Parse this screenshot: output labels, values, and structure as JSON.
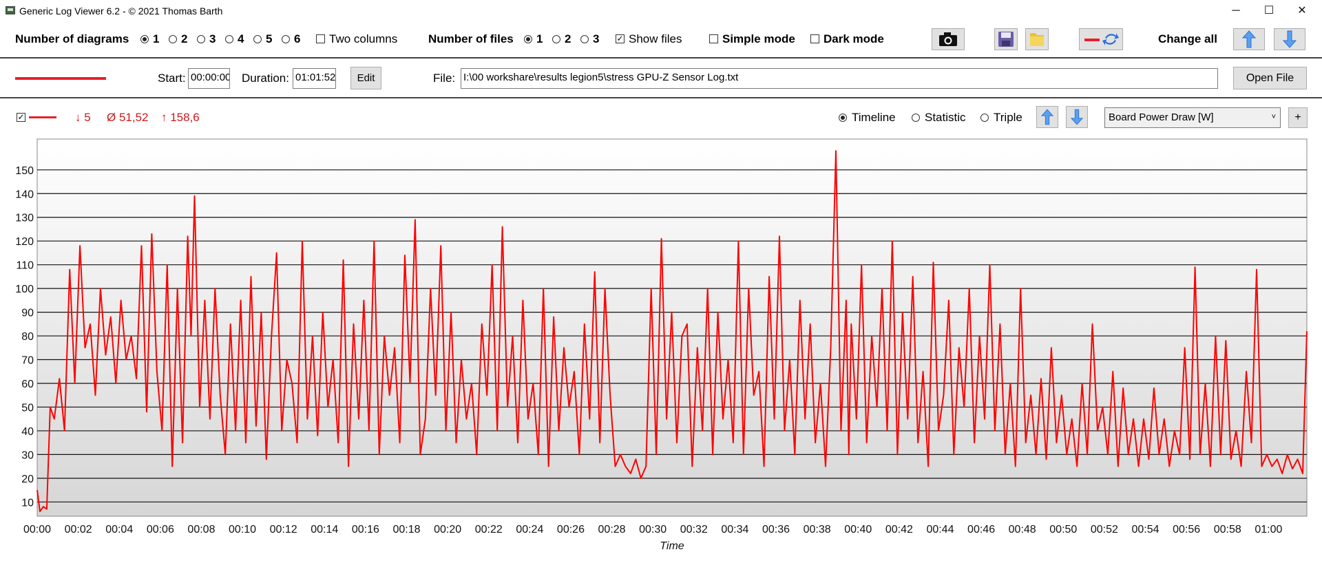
{
  "window": {
    "title": "Generic Log Viewer 6.2 - © 2021 Thomas Barth",
    "minimize": "─",
    "maximize": "☐",
    "close": "✕"
  },
  "toolbar": {
    "diagrams_label": "Number of diagrams",
    "diagram_options": [
      "1",
      "2",
      "3",
      "4",
      "5",
      "6"
    ],
    "diagrams_selected": "1",
    "two_columns_label": "Two columns",
    "files_label": "Number of files",
    "file_options": [
      "1",
      "2",
      "3"
    ],
    "files_selected": "1",
    "show_files_label": "Show files",
    "show_files_checked": true,
    "simple_mode_label": "Simple mode",
    "dark_mode_label": "Dark mode",
    "change_all_label": "Change all"
  },
  "file_row": {
    "start_label": "Start:",
    "start_value": "00:00:00",
    "duration_label": "Duration:",
    "duration_value": "01:01:52",
    "edit_label": "Edit",
    "file_label": "File:",
    "file_path": "I:\\00 workshare\\results legion5\\stress GPU-Z Sensor Log.txt",
    "open_file_label": "Open File",
    "line_color": "#e8202a"
  },
  "diagram": {
    "min_value": "↓ 5",
    "avg_value": "Ø 51,52",
    "max_value": "↑ 158,6",
    "view_options": [
      "Timeline",
      "Statistic",
      "Triple"
    ],
    "view_selected": "Timeline",
    "sensor": "Board Power Draw [W]",
    "add_label": "+"
  },
  "chart_data": {
    "type": "line",
    "xlabel": "Time",
    "ylabel": "",
    "ylim": [
      4,
      163
    ],
    "yticks": [
      10,
      20,
      30,
      40,
      50,
      60,
      70,
      80,
      90,
      100,
      110,
      120,
      130,
      140,
      150
    ],
    "x_range_seconds": [
      0,
      3712
    ],
    "xtick_labels": [
      "00:00",
      "00:02",
      "00:04",
      "00:06",
      "00:08",
      "00:10",
      "00:12",
      "00:14",
      "00:16",
      "00:18",
      "00:20",
      "00:22",
      "00:24",
      "00:26",
      "00:28",
      "00:30",
      "00:32",
      "00:34",
      "00:36",
      "00:38",
      "00:40",
      "00:42",
      "00:44",
      "00:46",
      "00:48",
      "00:50",
      "00:52",
      "00:54",
      "00:56",
      "00:58",
      "01:00"
    ],
    "grid": true,
    "series": [
      {
        "color": "#ff0000",
        "x": [
          "00:00:00",
          "00:00:08",
          "00:00:18",
          "00:00:28",
          "00:00:38",
          "00:00:50",
          "00:01:05",
          "00:01:20",
          "00:01:35",
          "00:01:50",
          "00:02:05",
          "00:02:20",
          "00:02:35",
          "00:02:50",
          "00:03:05",
          "00:03:20",
          "00:03:35",
          "00:03:50",
          "00:04:05",
          "00:04:20",
          "00:04:35",
          "00:04:50",
          "00:05:05",
          "00:05:20",
          "00:05:35",
          "00:05:50",
          "00:06:05",
          "00:06:20",
          "00:06:35",
          "00:06:50",
          "00:07:05",
          "00:07:20",
          "00:07:30",
          "00:07:40",
          "00:07:55",
          "00:08:10",
          "00:08:25",
          "00:08:40",
          "00:08:55",
          "00:09:10",
          "00:09:25",
          "00:09:40",
          "00:09:55",
          "00:10:10",
          "00:10:25",
          "00:10:40",
          "00:10:55",
          "00:11:10",
          "00:11:25",
          "00:11:40",
          "00:11:55",
          "00:12:10",
          "00:12:25",
          "00:12:40",
          "00:12:55",
          "00:13:10",
          "00:13:25",
          "00:13:40",
          "00:13:55",
          "00:14:10",
          "00:14:25",
          "00:14:40",
          "00:14:55",
          "00:15:10",
          "00:15:25",
          "00:15:40",
          "00:15:55",
          "00:16:10",
          "00:16:25",
          "00:16:40",
          "00:16:55",
          "00:17:10",
          "00:17:25",
          "00:17:40",
          "00:17:55",
          "00:18:10",
          "00:18:25",
          "00:18:40",
          "00:18:55",
          "00:19:10",
          "00:19:25",
          "00:19:40",
          "00:19:55",
          "00:20:10",
          "00:20:25",
          "00:20:40",
          "00:20:55",
          "00:21:10",
          "00:21:25",
          "00:21:40",
          "00:21:55",
          "00:22:10",
          "00:22:25",
          "00:22:40",
          "00:22:55",
          "00:23:10",
          "00:23:25",
          "00:23:40",
          "00:23:55",
          "00:24:10",
          "00:24:25",
          "00:24:40",
          "00:24:55",
          "00:25:10",
          "00:25:25",
          "00:25:40",
          "00:25:55",
          "00:26:10",
          "00:26:25",
          "00:26:40",
          "00:26:55",
          "00:27:10",
          "00:27:25",
          "00:27:40",
          "00:27:55",
          "00:28:10",
          "00:28:25",
          "00:28:40",
          "00:28:55",
          "00:29:10",
          "00:29:25",
          "00:29:40",
          "00:29:55",
          "00:30:10",
          "00:30:25",
          "00:30:40",
          "00:30:55",
          "00:31:10",
          "00:31:25",
          "00:31:40",
          "00:31:55",
          "00:32:10",
          "00:32:25",
          "00:32:40",
          "00:32:55",
          "00:33:10",
          "00:33:25",
          "00:33:40",
          "00:33:55",
          "00:34:10",
          "00:34:25",
          "00:34:40",
          "00:34:55",
          "00:35:10",
          "00:35:25",
          "00:35:40",
          "00:35:55",
          "00:36:10",
          "00:36:25",
          "00:36:40",
          "00:36:55",
          "00:37:10",
          "00:37:25",
          "00:37:40",
          "00:37:55",
          "00:38:10",
          "00:38:25",
          "00:38:40",
          "00:38:55",
          "00:39:10",
          "00:39:25",
          "00:39:33",
          "00:39:40",
          "00:39:55",
          "00:40:10",
          "00:40:25",
          "00:40:40",
          "00:40:55",
          "00:41:10",
          "00:41:25",
          "00:41:40",
          "00:41:55",
          "00:42:10",
          "00:42:25",
          "00:42:40",
          "00:42:55",
          "00:43:10",
          "00:43:25",
          "00:43:40",
          "00:43:55",
          "00:44:10",
          "00:44:25",
          "00:44:40",
          "00:44:55",
          "00:45:10",
          "00:45:25",
          "00:45:40",
          "00:45:55",
          "00:46:10",
          "00:46:25",
          "00:46:40",
          "00:46:55",
          "00:47:10",
          "00:47:25",
          "00:47:40",
          "00:47:55",
          "00:48:10",
          "00:48:25",
          "00:48:40",
          "00:48:55",
          "00:49:10",
          "00:49:25",
          "00:49:40",
          "00:49:55",
          "00:50:10",
          "00:50:25",
          "00:50:40",
          "00:50:55",
          "00:51:10",
          "00:51:25",
          "00:51:40",
          "00:51:55",
          "00:52:10",
          "00:52:25",
          "00:52:40",
          "00:52:55",
          "00:53:10",
          "00:53:25",
          "00:53:40",
          "00:53:55",
          "00:54:10",
          "00:54:25",
          "00:54:40",
          "00:54:55",
          "00:55:10",
          "00:55:25",
          "00:55:40",
          "00:55:55",
          "00:56:10",
          "00:56:25",
          "00:56:40",
          "00:56:55",
          "00:57:10",
          "00:57:25",
          "00:57:40",
          "00:57:55",
          "00:58:10",
          "00:58:25",
          "00:58:40",
          "00:58:55",
          "00:59:10",
          "00:59:25",
          "00:59:40",
          "00:59:55",
          "01:00:10",
          "01:00:25",
          "01:00:40",
          "01:00:55",
          "01:01:10",
          "01:01:25",
          "01:01:40",
          "01:01:52"
        ],
        "values": [
          15,
          6,
          8,
          7,
          50,
          45,
          62,
          40,
          108,
          60,
          118,
          75,
          85,
          55,
          100,
          72,
          88,
          60,
          95,
          70,
          80,
          62,
          118,
          48,
          123,
          65,
          40,
          110,
          25,
          100,
          35,
          122,
          80,
          139,
          50,
          95,
          45,
          100,
          55,
          30,
          85,
          40,
          95,
          35,
          105,
          42,
          90,
          28,
          80,
          115,
          40,
          70,
          60,
          35,
          120,
          45,
          80,
          38,
          90,
          50,
          70,
          35,
          112,
          25,
          85,
          45,
          95,
          40,
          120,
          30,
          80,
          55,
          75,
          35,
          114,
          60,
          129,
          30,
          45,
          100,
          55,
          118,
          40,
          90,
          35,
          70,
          45,
          60,
          30,
          85,
          55,
          110,
          40,
          126,
          50,
          80,
          35,
          95,
          45,
          60,
          30,
          100,
          25,
          88,
          40,
          75,
          50,
          65,
          30,
          85,
          45,
          107,
          35,
          100,
          55,
          25,
          30,
          25,
          22,
          28,
          20,
          25,
          100,
          30,
          121,
          45,
          90,
          35,
          80,
          85,
          25,
          75,
          40,
          100,
          30,
          90,
          45,
          70,
          35,
          120,
          30,
          100,
          55,
          65,
          25,
          105,
          45,
          122,
          40,
          70,
          30,
          95,
          45,
          85,
          35,
          60,
          25,
          75,
          158,
          40,
          95,
          30,
          85,
          45,
          110,
          35,
          80,
          50,
          100,
          40,
          120,
          30,
          90,
          45,
          105,
          35,
          65,
          25,
          111,
          40,
          55,
          95,
          30,
          75,
          50,
          100,
          35,
          80,
          45,
          110,
          40,
          85,
          30,
          60,
          25,
          100,
          35,
          55,
          30,
          62,
          28,
          75,
          35,
          55,
          30,
          45,
          25,
          60,
          30,
          85,
          40,
          50,
          30,
          65,
          25,
          58,
          30,
          45,
          25,
          45,
          28,
          58,
          30,
          45,
          25,
          40,
          30,
          75,
          28,
          109,
          30,
          60,
          25,
          80,
          30,
          78,
          28,
          40,
          25,
          65,
          35,
          108,
          25,
          30,
          25,
          28,
          22,
          30,
          24,
          28,
          22,
          82
        ]
      }
    ]
  },
  "icons": {
    "camera": "camera-icon",
    "save": "save-icon",
    "folder": "folder-icon",
    "line_color": "line-color-icon",
    "swap": "swap-icon",
    "up": "arrow-up-icon",
    "down": "arrow-down-icon"
  }
}
